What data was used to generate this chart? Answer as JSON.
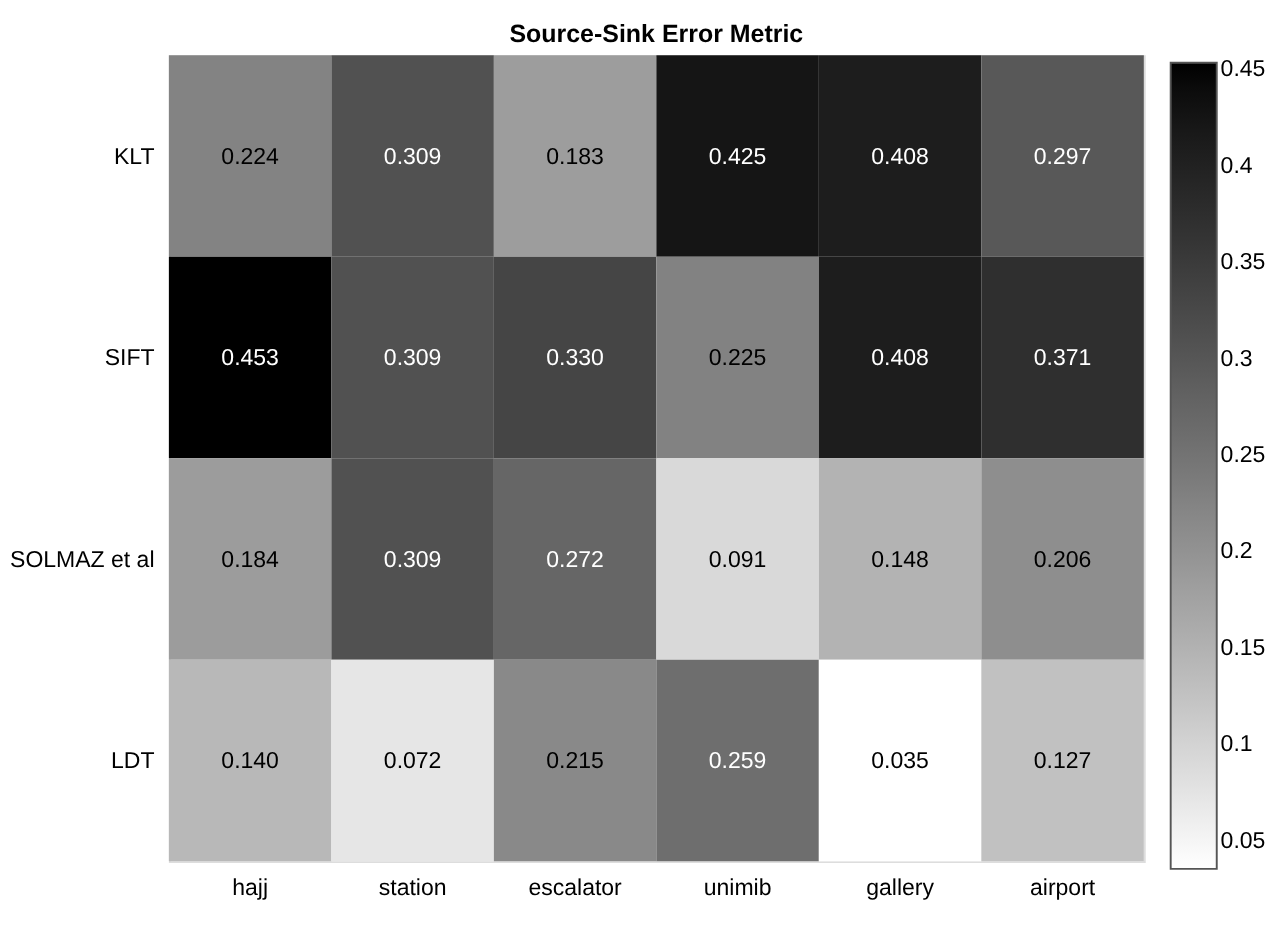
{
  "chart_data": {
    "type": "heatmap",
    "title": "Source-Sink Error Metric",
    "categories": [
      "hajj",
      "station",
      "escalator",
      "unimib",
      "gallery",
      "airport"
    ],
    "y_categories": [
      "KLT",
      "SIFT",
      "SOLMAZ et al",
      "LDT"
    ],
    "cells": [
      [
        0.224,
        0.309,
        0.183,
        0.425,
        0.408,
        0.297
      ],
      [
        0.453,
        0.309,
        0.33,
        0.225,
        0.408,
        0.371
      ],
      [
        0.184,
        0.309,
        0.272,
        0.091,
        0.148,
        0.206
      ],
      [
        0.14,
        0.072,
        0.215,
        0.259,
        0.035,
        0.127
      ]
    ],
    "cell_labels": [
      [
        "0.224",
        "0.309",
        "0.183",
        "0.425",
        "0.408",
        "0.297"
      ],
      [
        "0.453",
        "0.309",
        "0.330",
        "0.225",
        "0.408",
        "0.371"
      ],
      [
        "0.184",
        "0.309",
        "0.272",
        "0.091",
        "0.148",
        "0.206"
      ],
      [
        "0.140",
        "0.072",
        "0.215",
        "0.259",
        "0.035",
        "0.127"
      ]
    ],
    "clim": [
      0.035,
      0.453
    ],
    "cticks": [
      0.05,
      0.1,
      0.15,
      0.2,
      0.25,
      0.3,
      0.35,
      0.4,
      0.45
    ]
  }
}
